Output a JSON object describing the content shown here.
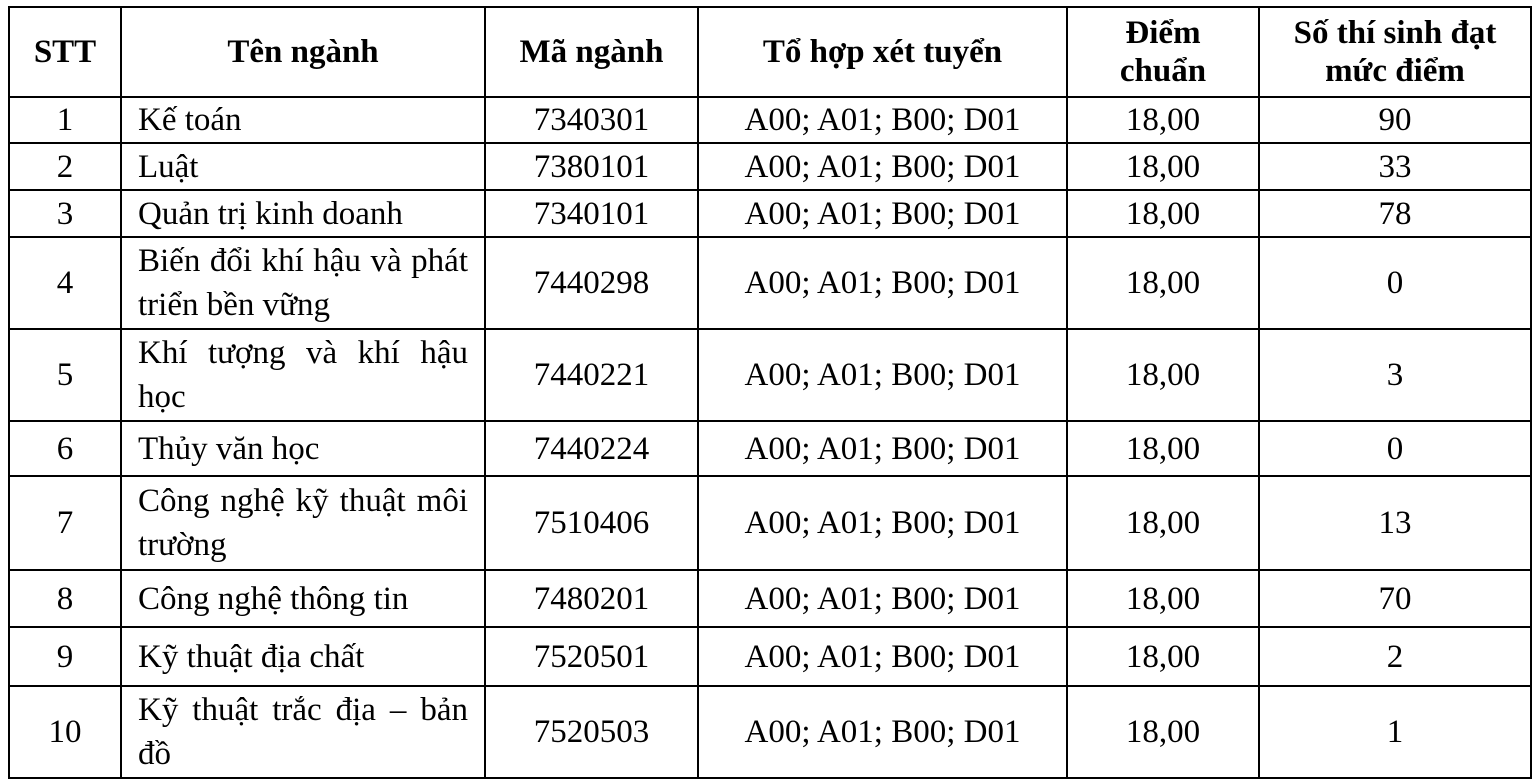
{
  "table": {
    "header": [
      "STT",
      "Tên  ngành",
      "Mã ngành",
      "Tổ hợp xét tuyển",
      "Điểm chuẩn",
      "Số thí sinh đạt mức điểm"
    ],
    "rows": [
      [
        "1",
        "Kế toán",
        "7340301",
        "A00; A01; B00; D01",
        "18,00",
        "90"
      ],
      [
        "2",
        "Luật",
        "7380101",
        "A00; A01; B00; D01",
        "18,00",
        "33"
      ],
      [
        "3",
        "Quản trị kinh doanh",
        "7340101",
        "A00; A01; B00; D01",
        "18,00",
        "78"
      ],
      [
        "4",
        "Biến đổi khí hậu và phát triển bền vững",
        "7440298",
        "A00; A01; B00; D01",
        "18,00",
        "0"
      ],
      [
        "5",
        "Khí tượng và khí hậu học",
        "7440221",
        "A00; A01; B00; D01",
        "18,00",
        "3"
      ],
      [
        "6",
        "Thủy văn học",
        "7440224",
        "A00; A01; B00; D01",
        "18,00",
        "0"
      ],
      [
        "7",
        "Công nghệ kỹ thuật môi trường",
        "7510406",
        "A00; A01; B00; D01",
        "18,00",
        "13"
      ],
      [
        "8",
        "Công nghệ thông tin",
        "7480201",
        "A00; A01; B00; D01",
        "18,00",
        "70"
      ],
      [
        "9",
        "Kỹ thuật địa chất",
        "7520501",
        "A00; A01; B00; D01",
        "18,00",
        "2"
      ],
      [
        "10",
        "Kỹ thuật trắc địa – bản đồ",
        "7520503",
        "A00; A01; B00; D01",
        "18,00",
        "1"
      ]
    ]
  }
}
